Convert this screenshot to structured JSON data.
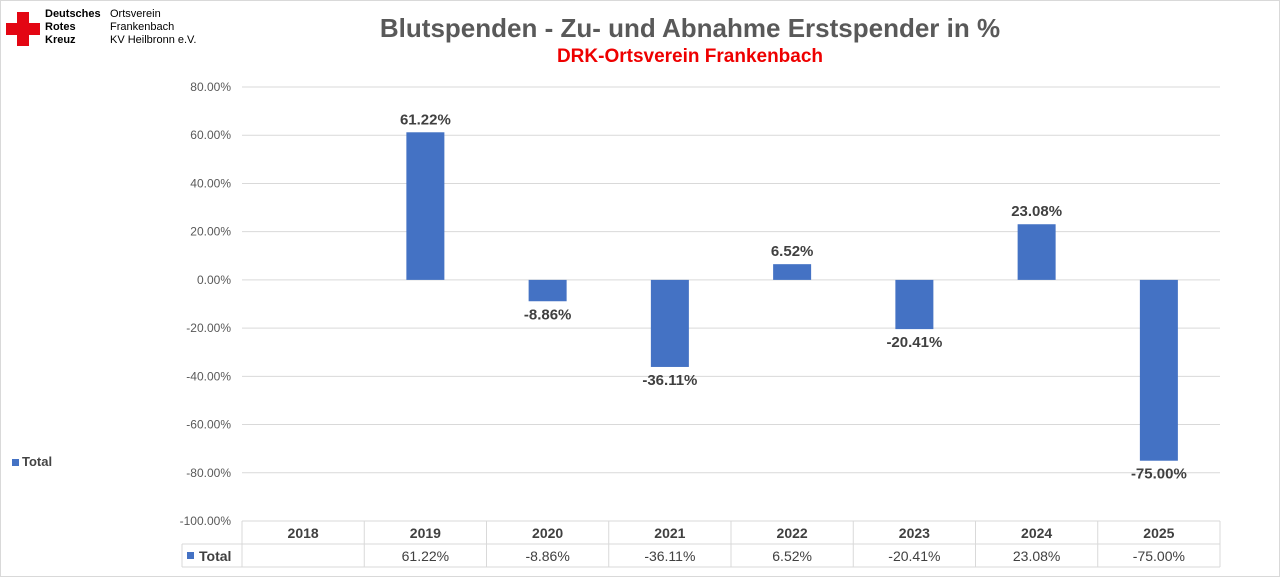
{
  "logo": {
    "org_lines": [
      "Deutsches",
      "Rotes",
      "Kreuz"
    ],
    "unit_lines": [
      "Ortsverein",
      "Frankenbach",
      "KV Heilbronn e.V."
    ],
    "icon": "red-cross-icon"
  },
  "legend_label": "Total",
  "colors": {
    "bar": "#4472C4",
    "grid": "#d9d9d9",
    "title": "#595959",
    "subtitle": "#ee0000"
  },
  "chart_data": {
    "type": "bar",
    "title": "Blutspenden - Zu- und Abnahme Erstspender in %",
    "subtitle": "DRK-Ortsverein Frankenbach",
    "categories": [
      "2018",
      "2019",
      "2020",
      "2021",
      "2022",
      "2023",
      "2024",
      "2025"
    ],
    "series": [
      {
        "name": "Total",
        "values": [
          null,
          61.22,
          -8.86,
          -36.11,
          6.52,
          -20.41,
          23.08,
          -75.0
        ]
      }
    ],
    "data_labels": [
      "",
      "61.22%",
      "-8.86%",
      "-36.11%",
      "6.52%",
      "-20.41%",
      "23.08%",
      "-75.00%"
    ],
    "yticks": [
      "80.00%",
      "60.00%",
      "40.00%",
      "20.00%",
      "0.00%",
      "-20.00%",
      "-40.00%",
      "-60.00%",
      "-80.00%",
      "-100.00%"
    ],
    "ylim": [
      -100,
      80
    ],
    "grid": true,
    "legend": "left",
    "data_table": true
  }
}
